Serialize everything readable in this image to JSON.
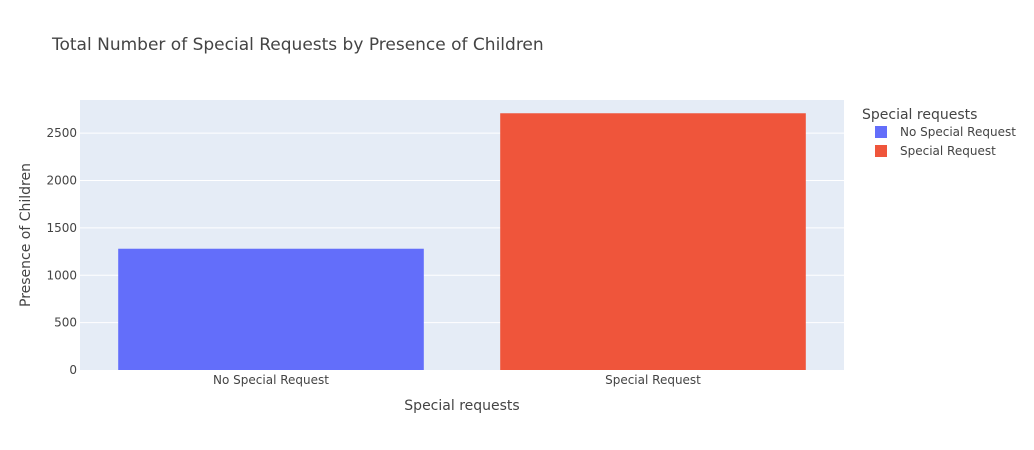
{
  "chart_data": {
    "type": "bar",
    "title": "Total Number of Special Requests by Presence of Children",
    "xlabel": "Special requests",
    "ylabel": "Presence of Children",
    "categories": [
      "No Special Request",
      "Special Request"
    ],
    "values": [
      1280,
      2710
    ],
    "colors": [
      "#636efa",
      "#ef553b"
    ],
    "ylim": [
      0,
      2850
    ],
    "yticks": [
      0,
      500,
      1000,
      1500,
      2000,
      2500
    ],
    "grid": true,
    "plot_bgcolor": "#e5ecf6",
    "legend": {
      "title": "Special requests",
      "placement": "right",
      "entries": [
        "No Special Request",
        "Special Request"
      ]
    }
  }
}
